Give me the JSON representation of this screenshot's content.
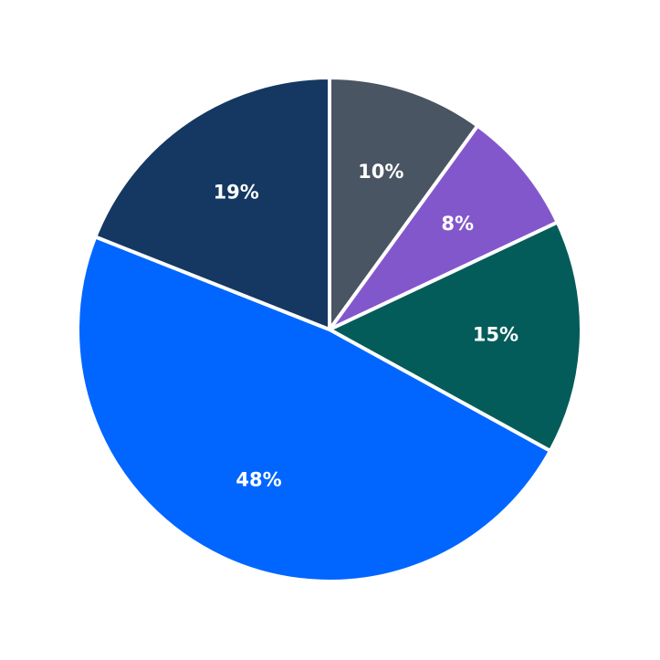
{
  "chart_data": {
    "type": "pie",
    "title": "",
    "start_angle_deg": 90,
    "direction": "clockwise",
    "slices": [
      {
        "label": "10%",
        "value": 10,
        "color": "#4a5563"
      },
      {
        "label": "8%",
        "value": 8,
        "color": "#8357cc"
      },
      {
        "label": "15%",
        "value": 15,
        "color": "#045c5a"
      },
      {
        "label": "48%",
        "value": 48,
        "color": "#0066ff"
      },
      {
        "label": "19%",
        "value": 19,
        "color": "#143862"
      }
    ]
  }
}
